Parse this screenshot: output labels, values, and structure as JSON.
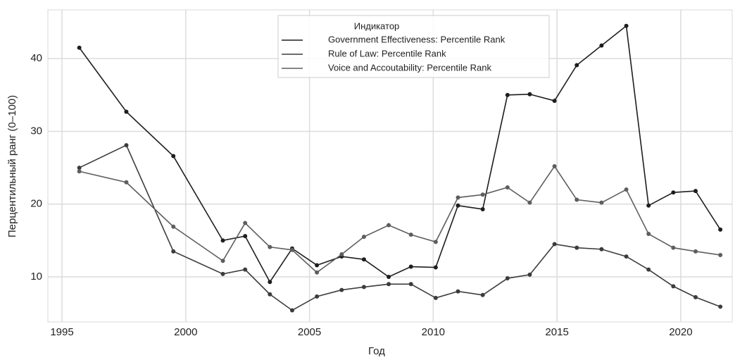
{
  "chart_data": {
    "type": "line",
    "x_label": "Год",
    "y_label": "Перцентильный ранг (0–100)",
    "legend_title": "Индикатор",
    "legend_position": "upper center",
    "grid": true,
    "xlim": [
      1994.43,
      2022.08
    ],
    "xticks": [
      1995,
      2000,
      2005,
      2010,
      2015,
      2020
    ],
    "ylim": [
      3.8,
      46.7
    ],
    "yticks": [
      10,
      20,
      30,
      40
    ],
    "x": [
      1995.7,
      1997.6,
      1999.5,
      2001.5,
      2002.4,
      2003.4,
      2004.3,
      2005.3,
      2006.3,
      2007.2,
      2008.2,
      2009.1,
      2010.1,
      2011.0,
      2012.0,
      2013.0,
      2013.9,
      2014.9,
      2015.8,
      2016.8,
      2017.8,
      2018.7,
      2019.7,
      2020.6,
      2021.6
    ],
    "series": [
      {
        "name": "Government Effectiveness: Percentile Rank",
        "color": "#1e1e1e",
        "values": [
          41.5,
          32.7,
          26.6,
          15.0,
          15.6,
          9.3,
          13.9,
          11.6,
          12.8,
          12.4,
          10.0,
          11.4,
          11.3,
          19.8,
          19.3,
          35.0,
          35.1,
          34.2,
          39.1,
          41.8,
          44.5,
          19.8,
          21.6,
          21.8,
          16.5
        ]
      },
      {
        "name": "Rule of Law: Percentile Rank",
        "color": "#3c3c3c",
        "values": [
          25.0,
          28.1,
          13.5,
          10.4,
          11.0,
          7.6,
          5.4,
          7.3,
          8.2,
          8.6,
          9.0,
          9.0,
          7.1,
          8.0,
          7.5,
          9.8,
          10.3,
          14.5,
          14.0,
          13.8,
          12.8,
          11.0,
          8.7,
          7.2,
          5.9
        ]
      },
      {
        "name": "Voice and Accoutability: Percentile Rank",
        "color": "#5e5e5e",
        "values": [
          24.5,
          23.0,
          16.9,
          12.2,
          17.4,
          14.1,
          13.7,
          10.6,
          13.1,
          15.5,
          17.1,
          15.8,
          14.8,
          20.9,
          21.3,
          22.3,
          20.2,
          25.2,
          20.6,
          20.2,
          22.0,
          15.9,
          14.0,
          13.5,
          13.0
        ]
      }
    ]
  }
}
